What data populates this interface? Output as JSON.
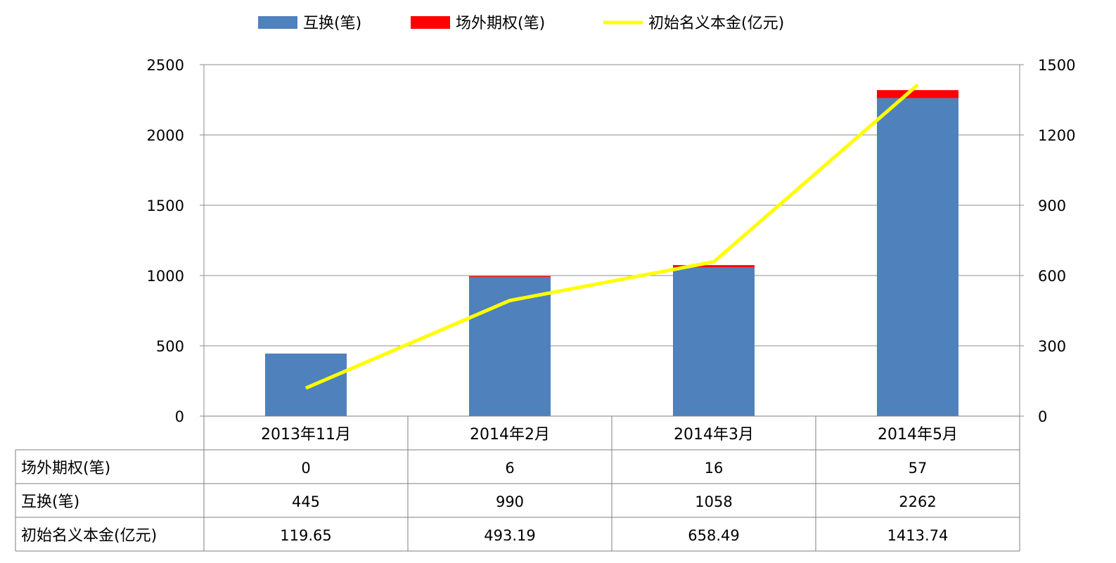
{
  "chart_data": {
    "type": "bar",
    "categories": [
      "2013年11月",
      "2014年2月",
      "2014年3月",
      "2014年5月"
    ],
    "series": [
      {
        "name": "互换(笔)",
        "type": "bar",
        "stack": "trades",
        "axis": "left",
        "color": "#4f81bd",
        "values": [
          445,
          990,
          1058,
          2262
        ]
      },
      {
        "name": "场外期权(笔)",
        "type": "bar",
        "stack": "trades",
        "axis": "left",
        "color": "#ff0000",
        "values": [
          0,
          6,
          16,
          57
        ]
      },
      {
        "name": "初始名义本金(亿元)",
        "type": "line",
        "axis": "right",
        "color": "#ffff00",
        "values": [
          119.65,
          493.19,
          658.49,
          1413.74
        ]
      }
    ],
    "y_left": {
      "min": 0,
      "max": 2500,
      "ticks": [
        "0",
        "500",
        "1000",
        "1500",
        "2000",
        "2500"
      ]
    },
    "y_right": {
      "min": 0,
      "max": 1500,
      "ticks": [
        "0",
        "300",
        "600",
        "900",
        "1200",
        "1500"
      ]
    },
    "grid": true,
    "legend_position": "top-center",
    "data_table": {
      "rows": [
        {
          "label": "场外期权(笔)",
          "values": [
            "0",
            "6",
            "16",
            "57"
          ]
        },
        {
          "label": "互换(笔)",
          "values": [
            "445",
            "990",
            "1058",
            "2262"
          ]
        },
        {
          "label": "初始名义本金(亿元)",
          "values": [
            "119.65",
            "493.19",
            "658.49",
            "1413.74"
          ]
        }
      ]
    }
  }
}
